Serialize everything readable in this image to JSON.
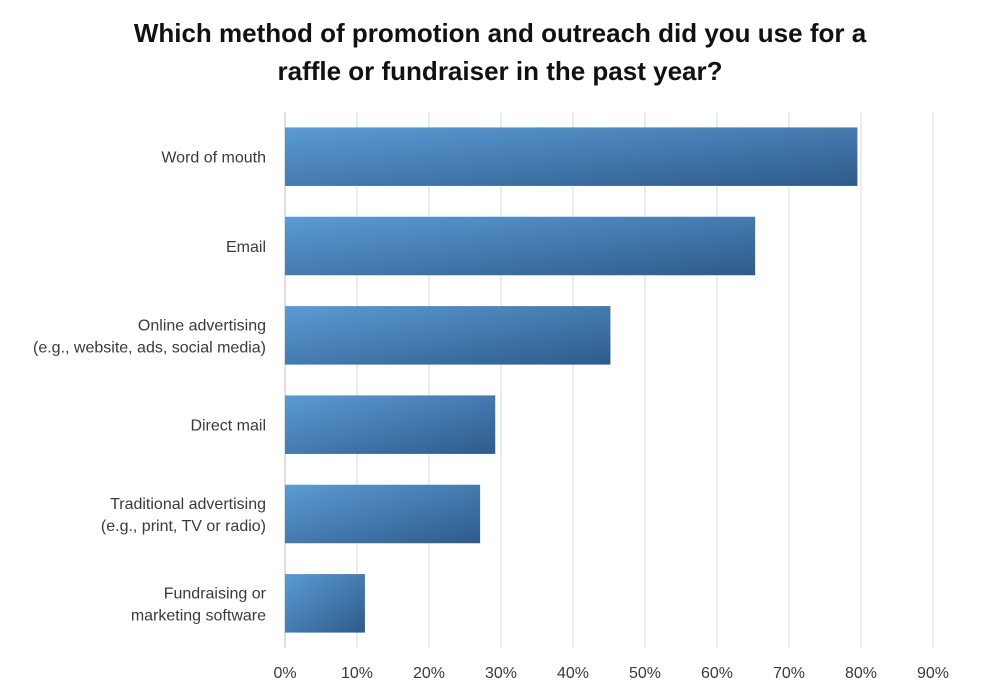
{
  "chart_data": {
    "type": "bar",
    "orientation": "horizontal",
    "title_lines": [
      "Which method of promotion and outreach did you use for a",
      "raffle or fundraiser in the past year?"
    ],
    "categories": [
      [
        "Word of mouth"
      ],
      [
        "Email"
      ],
      [
        "Online advertising",
        "(e.g., website, ads, social media)"
      ],
      [
        "Direct mail"
      ],
      [
        "Traditional advertising",
        "(e.g., print, TV or radio)"
      ],
      [
        "Fundraising or",
        "marketing software"
      ]
    ],
    "values": [
      79.5,
      65.3,
      45.2,
      29.2,
      27.1,
      11.1
    ],
    "value_unit": "%",
    "xlim": [
      0,
      90
    ],
    "xticks": [
      "0%",
      "10%",
      "20%",
      "30%",
      "40%",
      "50%",
      "60%",
      "70%",
      "80%",
      "90%"
    ],
    "grid": "vertical",
    "legend": "none",
    "colors": {
      "bar_light": "#5b9bd5",
      "bar_dark": "#2e5b8a",
      "grid": "#d9d9d9"
    }
  }
}
